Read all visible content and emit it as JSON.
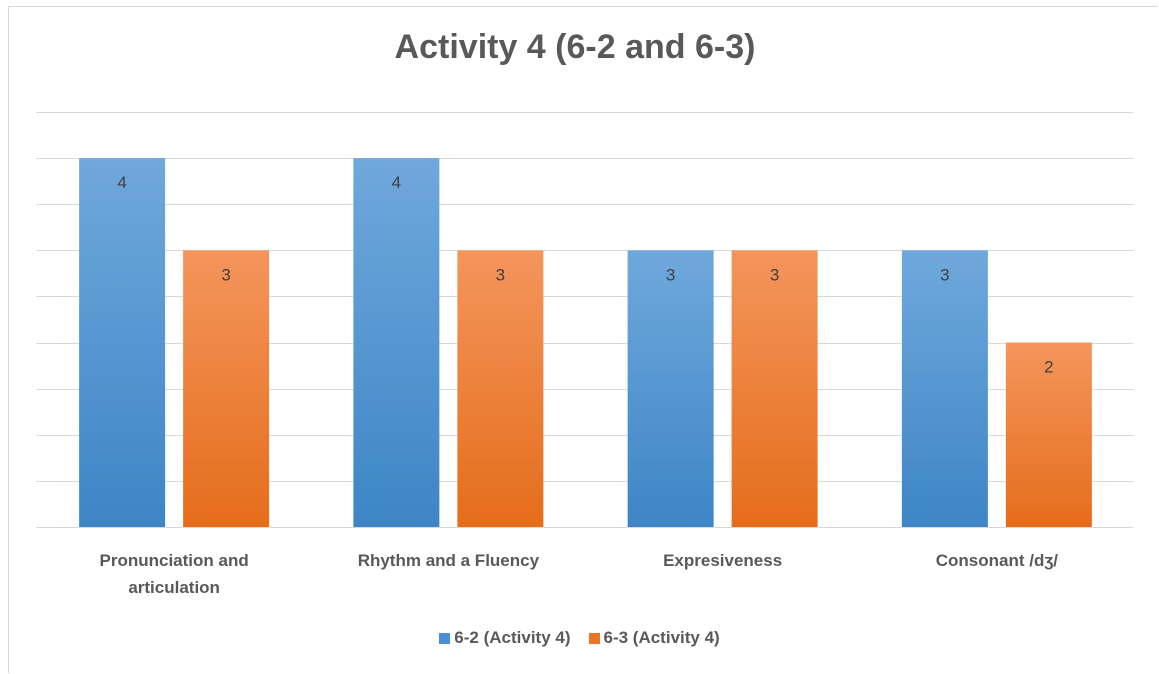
{
  "chart_data": {
    "type": "bar",
    "title": "Activity 4 (6-2 and 6-3)",
    "categories": [
      [
        "Pronunciation and",
        "articulation"
      ],
      [
        "Rhythm and a Fluency"
      ],
      [
        "Expresiveness"
      ],
      [
        "Consonant /dʒ/"
      ]
    ],
    "series": [
      {
        "name": "6-2 (Activity 4)",
        "values": [
          4,
          4,
          3,
          3
        ],
        "color": "#5b9bd5"
      },
      {
        "name": "6-3 (Activity 4)",
        "values": [
          3,
          3,
          3,
          2
        ],
        "color": "#ed7d31"
      }
    ],
    "ylim": [
      0,
      4.5
    ],
    "grid": true,
    "legend_position": "bottom",
    "xlabel": "",
    "ylabel": ""
  }
}
